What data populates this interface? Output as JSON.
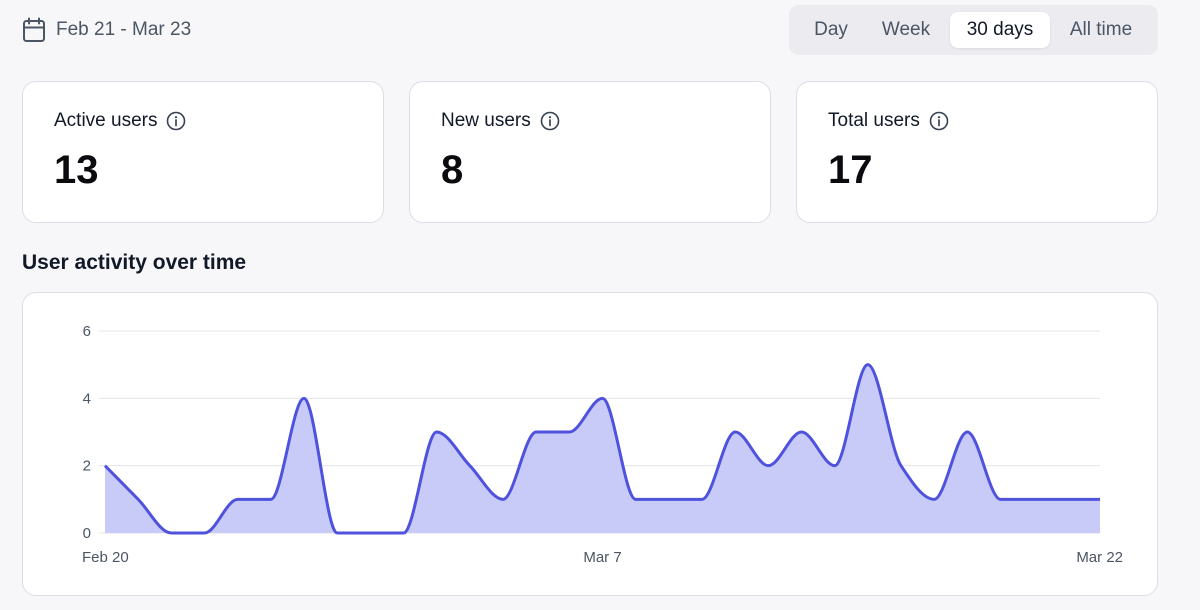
{
  "date_range": {
    "label": "Feb 21 - Mar 23",
    "icon": "calendar-icon"
  },
  "range_selector": {
    "options": [
      "Day",
      "Week",
      "30 days",
      "All time"
    ],
    "selected": "30 days"
  },
  "stats": [
    {
      "label": "Active users",
      "value": "13"
    },
    {
      "label": "New users",
      "value": "8"
    },
    {
      "label": "Total users",
      "value": "17"
    }
  ],
  "activity_section": {
    "title": "User activity over time"
  },
  "colors": {
    "line": "#4f52dc",
    "fill": "#c8cbf8",
    "grid": "#e5e5ea",
    "card_border": "#dddde3",
    "background": "#f7f7fa"
  },
  "chart_data": {
    "type": "area",
    "x": [
      "Feb 20",
      "Feb 21",
      "Feb 22",
      "Feb 23",
      "Feb 24",
      "Feb 25",
      "Feb 26",
      "Feb 27",
      "Feb 28",
      "Mar 1",
      "Mar 2",
      "Mar 3",
      "Mar 4",
      "Mar 5",
      "Mar 6",
      "Mar 7",
      "Mar 8",
      "Mar 9",
      "Mar 10",
      "Mar 11",
      "Mar 12",
      "Mar 13",
      "Mar 14",
      "Mar 15",
      "Mar 16",
      "Mar 17",
      "Mar 18",
      "Mar 19",
      "Mar 20",
      "Mar 21",
      "Mar 22"
    ],
    "values": [
      2,
      1,
      0,
      0,
      1,
      1,
      4,
      0,
      0,
      0,
      3,
      2,
      1,
      3,
      3,
      4,
      1,
      1,
      1,
      3,
      2,
      3,
      2,
      5,
      2,
      1,
      3,
      1,
      1,
      1,
      1
    ],
    "x_tick_labels": [
      "Feb 20",
      "Mar 7",
      "Mar 22"
    ],
    "y_ticks": [
      "0",
      "2",
      "4",
      "6"
    ],
    "ylim": [
      0,
      6
    ],
    "grid": true
  }
}
